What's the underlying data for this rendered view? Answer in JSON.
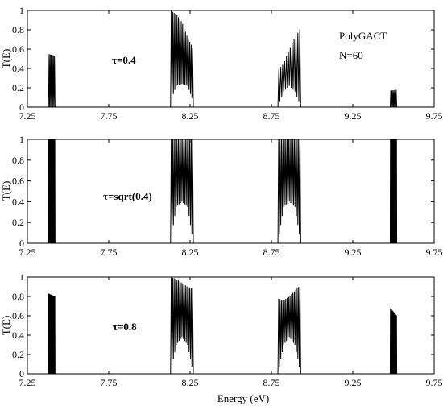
{
  "figure": {
    "xlabel": "Energy (eV)",
    "annotations": [
      "PolyGACT",
      "N=60"
    ]
  },
  "chart_data": [
    {
      "type": "line",
      "ylabel": "T(E)",
      "annotation": "τ=0.4",
      "xlim": [
        7.25,
        9.75
      ],
      "ylim": [
        0,
        1
      ],
      "xticks": [
        "7.25",
        "7.75",
        "8.25",
        "8.75",
        "9.25",
        "9.75"
      ],
      "yticks": [
        "0",
        "0.2",
        "0.4",
        "0.6",
        "0.8",
        "1"
      ],
      "bands": [
        {
          "xmin": 7.38,
          "xmax": 7.42,
          "peaks": 6,
          "envelope_top": [
            0.55,
            0.53
          ],
          "envelope_bottom": [
            0.0,
            0.0
          ]
        },
        {
          "xmin": 8.13,
          "xmax": 8.27,
          "peaks": 16,
          "envelope_top": [
            1.0,
            0.96,
            0.88,
            0.72,
            0.6
          ],
          "envelope_bottom": [
            0.05,
            0.22,
            0.24,
            0.22,
            0.05
          ]
        },
        {
          "xmin": 8.79,
          "xmax": 8.93,
          "peaks": 12,
          "envelope_top": [
            0.38,
            0.45,
            0.6,
            0.72,
            0.82
          ],
          "envelope_bottom": [
            0.0,
            0.16,
            0.22,
            0.16,
            0.0
          ]
        },
        {
          "xmin": 9.48,
          "xmax": 9.52,
          "peaks": 6,
          "envelope_top": [
            0.17,
            0.18
          ],
          "envelope_bottom": [
            0.0,
            0.0
          ]
        }
      ]
    },
    {
      "type": "line",
      "ylabel": "T(E)",
      "annotation": "τ=sqrt(0.4)",
      "xlim": [
        7.25,
        9.75
      ],
      "ylim": [
        0,
        1
      ],
      "xticks": [
        "7.25",
        "7.75",
        "8.25",
        "8.75",
        "9.25",
        "9.75"
      ],
      "yticks": [
        "0",
        "0.2",
        "0.4",
        "0.6",
        "0.8",
        "1"
      ],
      "bands": [
        {
          "xmin": 7.38,
          "xmax": 7.42,
          "peaks": 16,
          "envelope_top": [
            1.0,
            1.0
          ],
          "envelope_bottom": [
            0.0,
            0.0
          ]
        },
        {
          "xmin": 8.13,
          "xmax": 8.27,
          "peaks": 16,
          "envelope_top": [
            1.0,
            1.0,
            1.0,
            1.0,
            1.0
          ],
          "envelope_bottom": [
            0.0,
            0.35,
            0.4,
            0.35,
            0.0
          ]
        },
        {
          "xmin": 8.79,
          "xmax": 8.93,
          "peaks": 16,
          "envelope_top": [
            1.0,
            1.0,
            1.0,
            1.0,
            1.0
          ],
          "envelope_bottom": [
            0.0,
            0.35,
            0.4,
            0.35,
            0.0
          ]
        },
        {
          "xmin": 9.48,
          "xmax": 9.52,
          "peaks": 16,
          "envelope_top": [
            1.0,
            1.0
          ],
          "envelope_bottom": [
            0.0,
            0.0
          ]
        }
      ]
    },
    {
      "type": "line",
      "ylabel": "T(E)",
      "annotation": "τ=0.8",
      "xlim": [
        7.25,
        9.75
      ],
      "ylim": [
        0,
        1
      ],
      "xticks": [
        "7.25",
        "7.75",
        "8.25",
        "8.75",
        "9.25",
        "9.75"
      ],
      "yticks": [
        "0",
        "0.2",
        "0.4",
        "0.6",
        "0.8",
        "1"
      ],
      "bands": [
        {
          "xmin": 7.38,
          "xmax": 7.42,
          "peaks": 16,
          "envelope_top": [
            0.83,
            0.8
          ],
          "envelope_bottom": [
            0.0,
            0.0
          ]
        },
        {
          "xmin": 8.13,
          "xmax": 8.27,
          "peaks": 16,
          "envelope_top": [
            1.0,
            0.98,
            0.94,
            0.9,
            0.88
          ],
          "envelope_bottom": [
            0.0,
            0.3,
            0.38,
            0.3,
            0.0
          ]
        },
        {
          "xmin": 8.79,
          "xmax": 8.93,
          "peaks": 16,
          "envelope_top": [
            0.78,
            0.76,
            0.8,
            0.86,
            0.92
          ],
          "envelope_bottom": [
            0.0,
            0.3,
            0.38,
            0.3,
            0.0
          ]
        },
        {
          "xmin": 9.48,
          "xmax": 9.52,
          "peaks": 16,
          "envelope_top": [
            0.68,
            0.6
          ],
          "envelope_bottom": [
            0.0,
            0.0
          ]
        }
      ]
    }
  ]
}
